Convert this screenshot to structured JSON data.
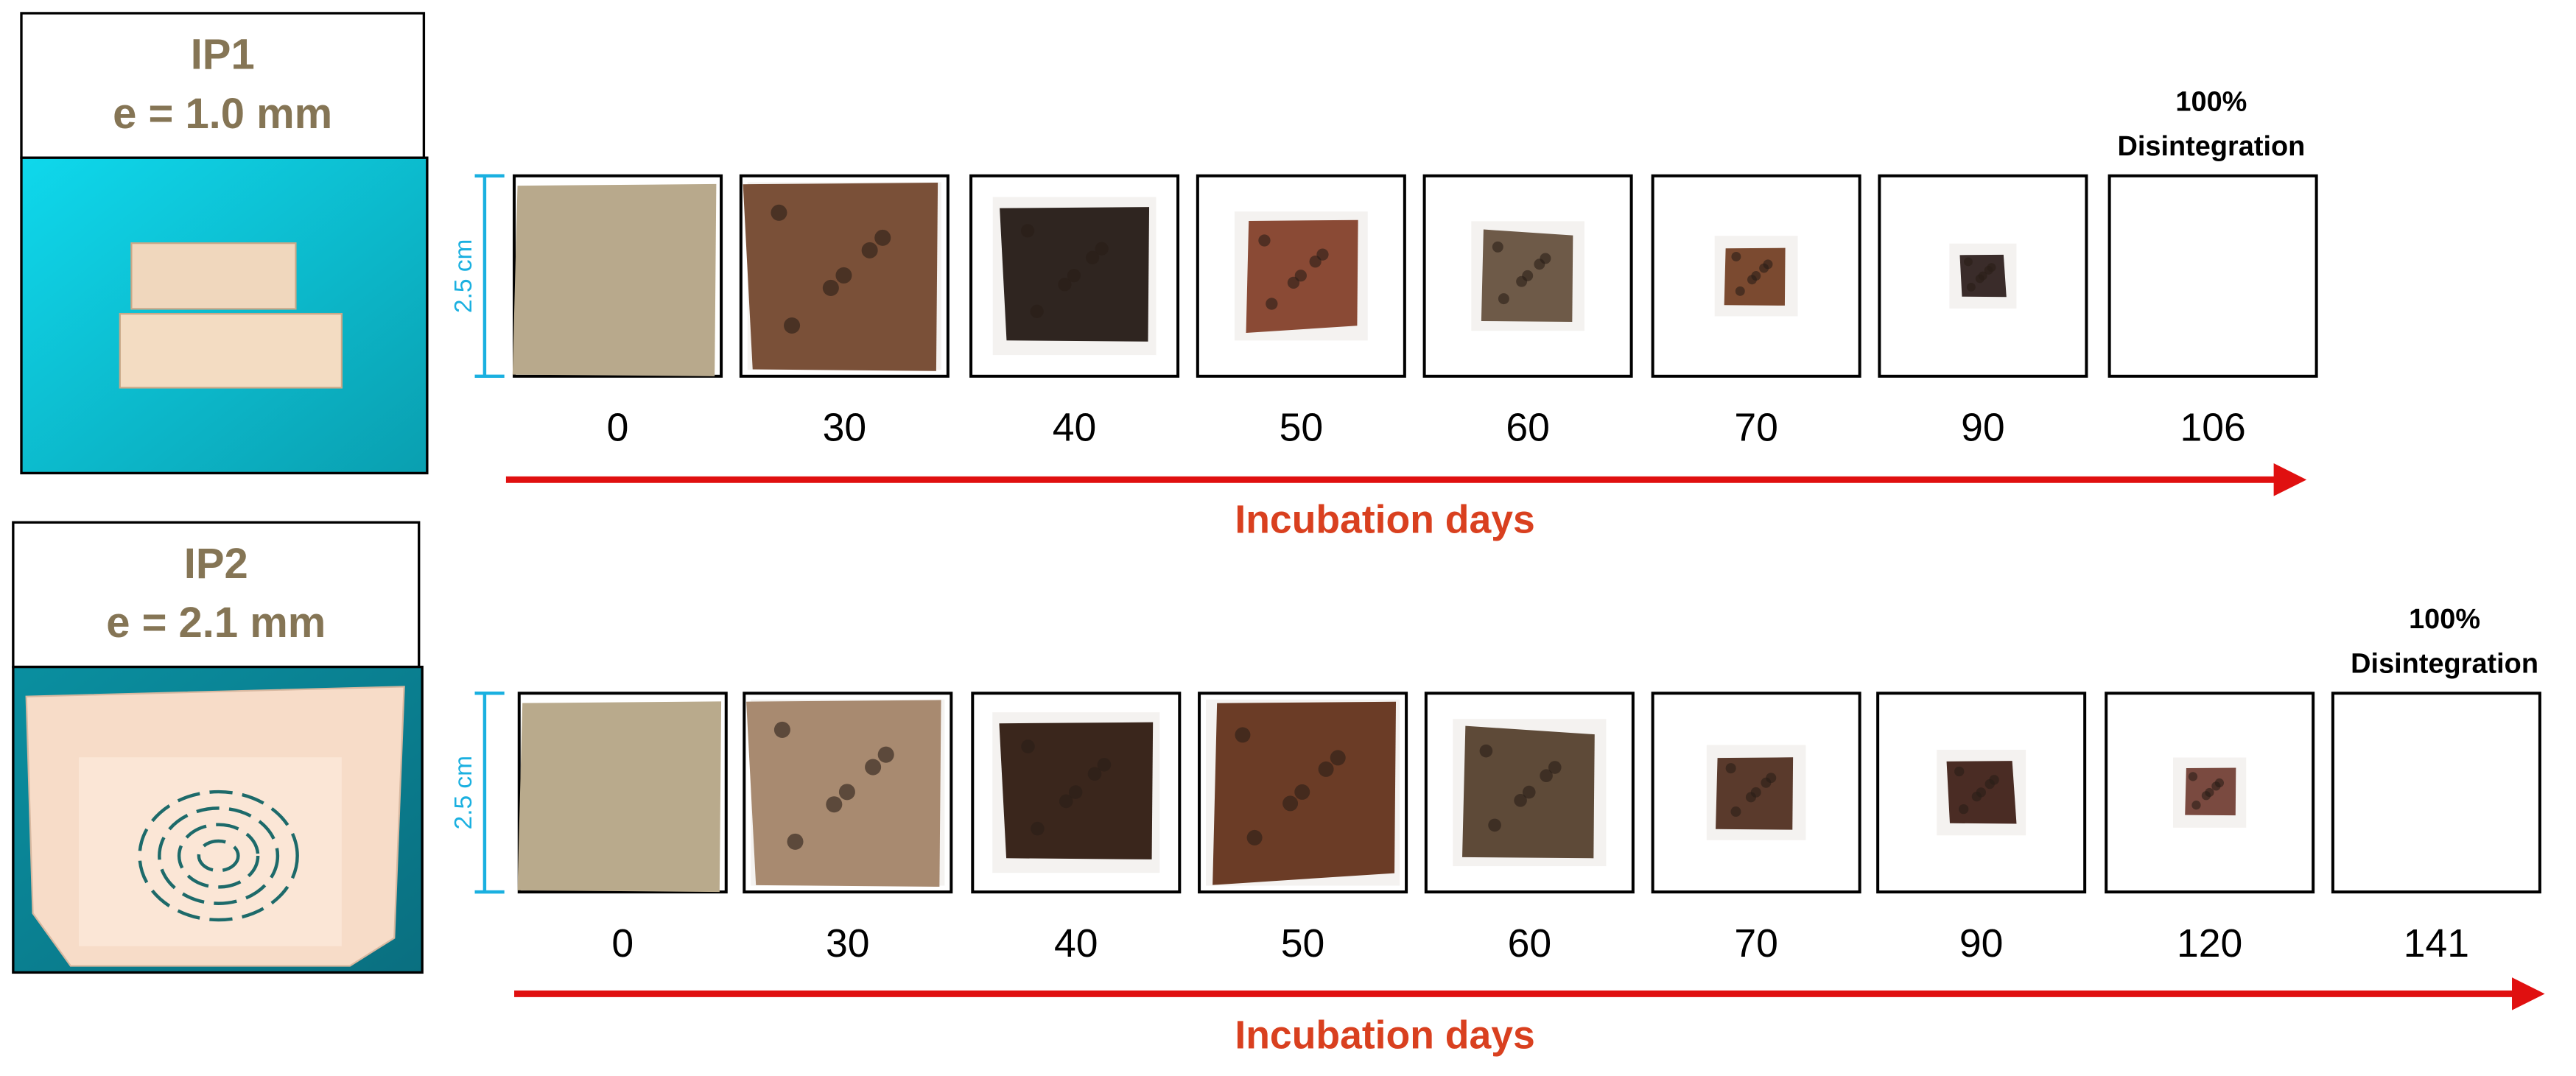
{
  "rows": [
    {
      "label": "IP1",
      "thickness": "e = 1.0 mm",
      "scale": "2.5 cm",
      "days": [
        "0",
        "30",
        "40",
        "50",
        "60",
        "70",
        "90",
        "106"
      ],
      "note": [
        "100%",
        "Disintegration"
      ],
      "axis_label": "Incubation days"
    },
    {
      "label": "IP2",
      "thickness": "e = 2.1 mm",
      "scale": "2.5 cm",
      "days": [
        "0",
        "30",
        "40",
        "50",
        "60",
        "70",
        "90",
        "120",
        "141"
      ],
      "note": [
        "100%",
        "Disintegration"
      ],
      "axis_label": "Incubation days"
    }
  ]
}
